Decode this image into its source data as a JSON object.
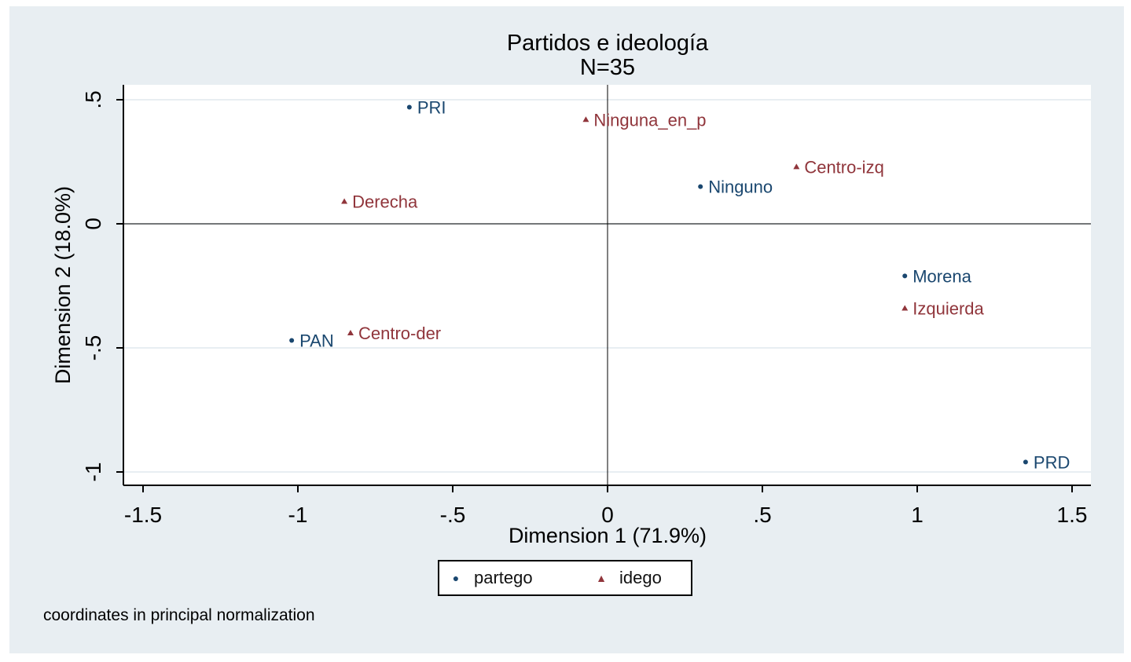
{
  "chart_data": {
    "type": "scatter",
    "title": "Partidos e ideología",
    "subtitle": "N=35",
    "xlabel": "Dimension 1 (71.9%)",
    "ylabel": "Dimension 2 (18.0%)",
    "xlim": [
      -1.55,
      1.55
    ],
    "ylim": [
      -1.05,
      0.56
    ],
    "xticks": [
      -1.5,
      -1,
      -0.5,
      0,
      0.5,
      1,
      1.5
    ],
    "xtick_labels": [
      "-1.5",
      "-1",
      "-.5",
      "0",
      ".5",
      "1",
      "1.5"
    ],
    "yticks": [
      0.5,
      0,
      -0.5,
      -1
    ],
    "ytick_labels": [
      ".5",
      "0",
      "-.5",
      "-1"
    ],
    "grid": true,
    "legend_position": "bottom",
    "series": [
      {
        "name": "partego",
        "marker": "circle",
        "color": "#1a476f",
        "points": [
          {
            "label": "PRI",
            "x": -0.64,
            "y": 0.47
          },
          {
            "label": "Ninguno",
            "x": 0.3,
            "y": 0.15
          },
          {
            "label": "Morena",
            "x": 0.96,
            "y": -0.21
          },
          {
            "label": "PAN",
            "x": -1.02,
            "y": -0.47
          },
          {
            "label": "PRD",
            "x": 1.35,
            "y": -0.96
          }
        ]
      },
      {
        "name": "idego",
        "marker": "triangle",
        "color": "#90353b",
        "points": [
          {
            "label": "Ninguna_en_p",
            "x": -0.07,
            "y": 0.42
          },
          {
            "label": "Centro-izq",
            "x": 0.61,
            "y": 0.23
          },
          {
            "label": "Derecha",
            "x": -0.85,
            "y": 0.09
          },
          {
            "label": "Izquierda",
            "x": 0.96,
            "y": -0.34
          },
          {
            "label": "Centro-der",
            "x": -0.83,
            "y": -0.44
          }
        ]
      }
    ]
  },
  "note": "coordinates in principal normalization",
  "colors": {
    "frame_background": "#e8eef2",
    "plot_background": "#ffffff",
    "grid": "#e8eef2",
    "axis": "#000000"
  }
}
